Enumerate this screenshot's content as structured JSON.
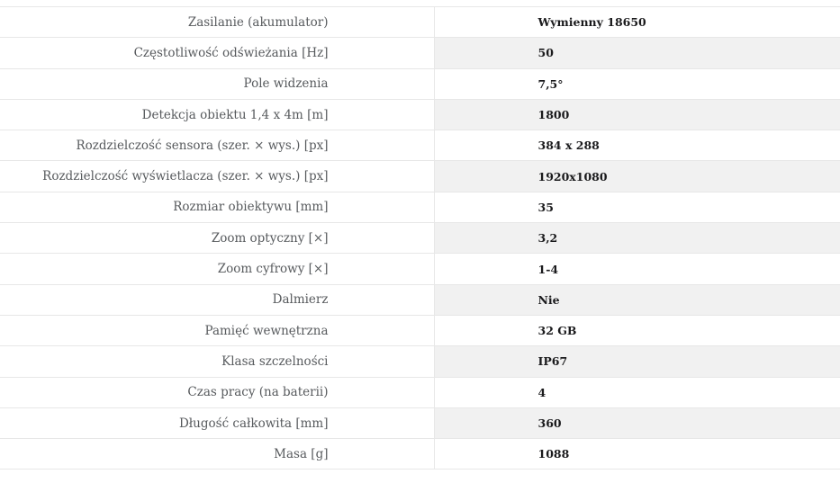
{
  "colors": {
    "row_alt_background": "#f1f1f1",
    "border": "#e7e7e7",
    "label_text": "#575a5d",
    "value_text": "#1a1a1c",
    "background": "#ffffff"
  },
  "table": {
    "kind": "product-specifications",
    "rows": [
      {
        "label": "Zasilanie (akumulator)",
        "value": "Wymienny 18650"
      },
      {
        "label": "Częstotliwość odświeżania [Hz]",
        "value": "50"
      },
      {
        "label": "Pole widzenia",
        "value": "7,5°"
      },
      {
        "label": "Detekcja obiektu 1,4 x 4m [m]",
        "value": "1800"
      },
      {
        "label": "Rozdzielczość sensora (szer. × wys.) [px]",
        "value": "384 x 288"
      },
      {
        "label": "Rozdzielczość wyświetlacza (szer. × wys.) [px]",
        "value": "1920x1080"
      },
      {
        "label": "Rozmiar obiektywu [mm]",
        "value": "35"
      },
      {
        "label": "Zoom optyczny [×]",
        "value": "3,2"
      },
      {
        "label": "Zoom cyfrowy [×]",
        "value": "1-4"
      },
      {
        "label": "Dalmierz",
        "value": "Nie"
      },
      {
        "label": "Pamięć wewnętrzna",
        "value": "32 GB"
      },
      {
        "label": "Klasa szczelności",
        "value": "IP67"
      },
      {
        "label": "Czas pracy (na baterii)",
        "value": "4"
      },
      {
        "label": "Długość całkowita [mm]",
        "value": "360"
      },
      {
        "label": "Masa [g]",
        "value": "1088"
      }
    ]
  }
}
